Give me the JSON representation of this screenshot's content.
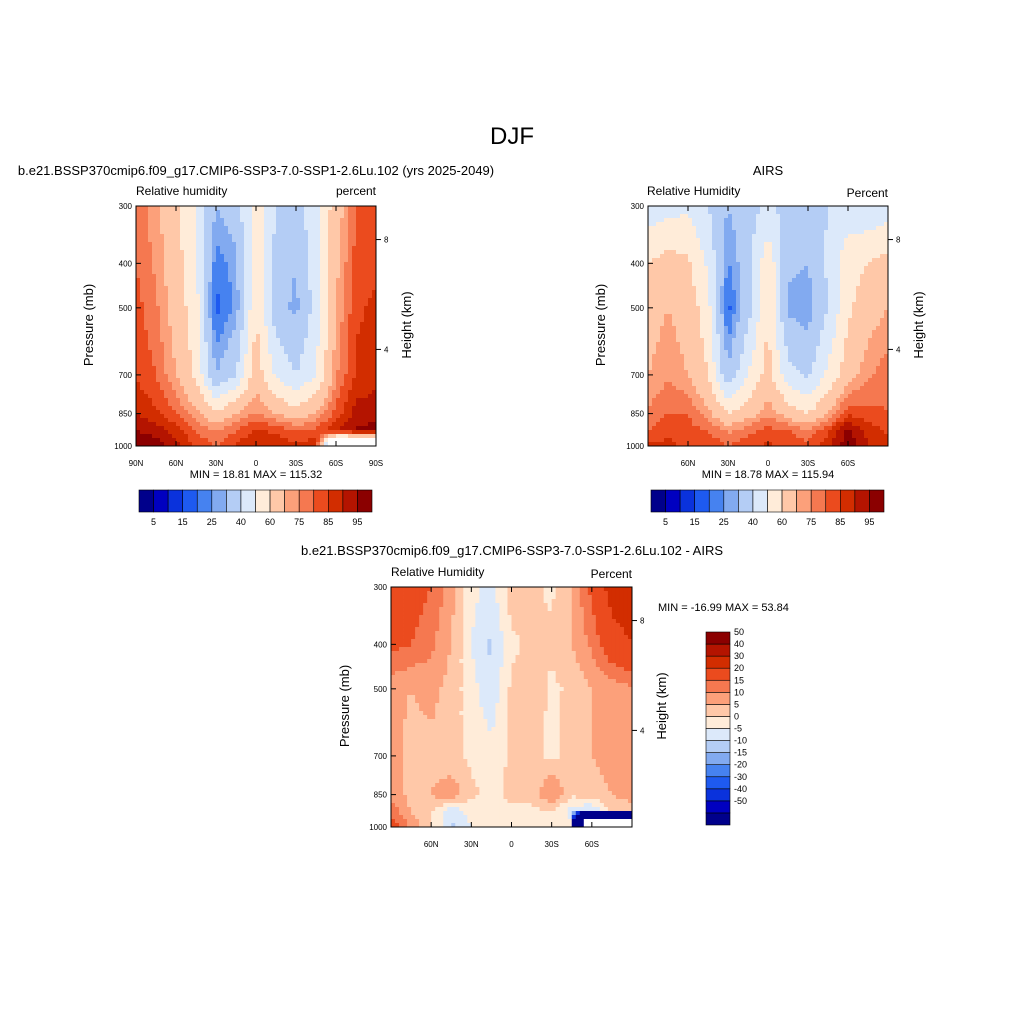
{
  "figure": {
    "title": "DJF"
  },
  "colors": {
    "abs_levels": [
      "#00008b",
      "#0000c0",
      "#0a32dc",
      "#1e5af0",
      "#4682f0",
      "#82aaf0",
      "#b4cdf5",
      "#dce9fa",
      "#ffecd9",
      "#ffc8a8",
      "#fca07a",
      "#f57850",
      "#eb4b1e",
      "#d22d00",
      "#b41400",
      "#8b0000"
    ],
    "diff_levels": [
      "#00008b",
      "#0000c0",
      "#0a32dc",
      "#1e5af0",
      "#4682f0",
      "#82aaf0",
      "#b4cdf5",
      "#dce9fa",
      "#ffecd9",
      "#ffc8a8",
      "#fca07a",
      "#f57850",
      "#eb4b1e",
      "#d22d00",
      "#b41400",
      "#8b0000"
    ],
    "missing": "#ffffff"
  },
  "chart_data": [
    {
      "type": "heatmap",
      "title": "b.e21.BSSP370cmip6.f09_g17.CMIP6-SSP3-7.0-SSP1-2.6Lu.102 (yrs 2025-2049)",
      "left_label": "Relative humidity",
      "right_label": "percent",
      "ylabel": "Pressure (mb)",
      "ylabel_right": "Height (km)",
      "yticks": [
        "300",
        "400",
        "500",
        "700",
        "850",
        "1000"
      ],
      "ytick_values": [
        300,
        400,
        500,
        700,
        850,
        1000
      ],
      "yticks_right": [
        "8",
        "4"
      ],
      "xticks": [
        "90N",
        "60N",
        "30N",
        "0",
        "30S",
        "60S",
        "90S"
      ],
      "xtick_values": [
        90,
        60,
        30,
        0,
        -30,
        -60,
        -90
      ],
      "xlim": [
        90,
        -90
      ],
      "ylim": [
        300,
        1000
      ],
      "stats": "MIN =  18.81  MAX = 115.32",
      "colorbar_labels": [
        "5",
        "15",
        "25",
        "40",
        "60",
        "75",
        "85",
        "95"
      ],
      "levels": [
        5,
        10,
        15,
        20,
        25,
        30,
        40,
        50,
        60,
        70,
        75,
        80,
        85,
        90,
        95
      ],
      "x": [
        90,
        75,
        60,
        45,
        30,
        15,
        0,
        -15,
        -30,
        -45,
        -60,
        -75,
        -90
      ],
      "pressure": [
        300,
        400,
        500,
        700,
        850,
        925,
        1000
      ],
      "values": [
        [
          78,
          72,
          62,
          50,
          30,
          35,
          55,
          40,
          35,
          48,
          65,
          80,
          82
        ],
        [
          80,
          74,
          64,
          52,
          22,
          28,
          58,
          36,
          30,
          46,
          68,
          82,
          84
        ],
        [
          82,
          76,
          66,
          54,
          18,
          26,
          60,
          34,
          28,
          44,
          70,
          84,
          86
        ],
        [
          84,
          80,
          70,
          58,
          30,
          40,
          66,
          48,
          40,
          50,
          74,
          86,
          88
        ],
        [
          90,
          86,
          80,
          72,
          62,
          70,
          76,
          70,
          64,
          70,
          82,
          92,
          93
        ],
        [
          95,
          93,
          88,
          80,
          74,
          80,
          86,
          84,
          80,
          82,
          90,
          96,
          97
        ],
        [
          100,
          98,
          92,
          84,
          80,
          86,
          90,
          88,
          86,
          88,
          -1,
          -1,
          -1
        ]
      ]
    },
    {
      "type": "heatmap",
      "title": "AIRS",
      "left_label": "Relative Humidity",
      "right_label": "Percent",
      "ylabel": "Pressure (mb)",
      "ylabel_right": "Height (km)",
      "yticks": [
        "300",
        "400",
        "500",
        "700",
        "850",
        "1000"
      ],
      "ytick_values": [
        300,
        400,
        500,
        700,
        850,
        1000
      ],
      "yticks_right": [
        "8",
        "4"
      ],
      "xticks": [
        "60N",
        "30N",
        "0",
        "30S",
        "60S"
      ],
      "xtick_values": [
        60,
        30,
        0,
        -30,
        -60
      ],
      "xlim": [
        90,
        -90
      ],
      "ylim": [
        300,
        1000
      ],
      "stats": "MIN =  18.78  MAX = 115.94",
      "colorbar_labels": [
        "5",
        "15",
        "25",
        "40",
        "60",
        "75",
        "85",
        "95"
      ],
      "levels": [
        5,
        10,
        15,
        20,
        25,
        30,
        40,
        50,
        60,
        70,
        75,
        80,
        85,
        90,
        95
      ],
      "x": [
        90,
        75,
        60,
        45,
        30,
        15,
        0,
        -15,
        -30,
        -45,
        -60,
        -75,
        -90
      ],
      "pressure": [
        300,
        400,
        500,
        700,
        850,
        925,
        1000
      ],
      "values": [
        [
          44,
          46,
          48,
          40,
          30,
          36,
          42,
          36,
          34,
          40,
          44,
          42,
          44
        ],
        [
          60,
          64,
          62,
          48,
          24,
          36,
          58,
          32,
          30,
          42,
          56,
          60,
          64
        ],
        [
          66,
          70,
          66,
          54,
          18,
          36,
          60,
          28,
          26,
          40,
          58,
          66,
          70
        ],
        [
          70,
          74,
          70,
          60,
          32,
          50,
          64,
          44,
          38,
          52,
          66,
          74,
          78
        ],
        [
          76,
          80,
          80,
          72,
          60,
          66,
          74,
          66,
          60,
          70,
          84,
          82,
          80
        ],
        [
          80,
          84,
          82,
          80,
          74,
          78,
          82,
          80,
          76,
          84,
          96,
          88,
          84
        ],
        [
          86,
          86,
          84,
          84,
          80,
          84,
          86,
          84,
          82,
          88,
          100,
          90,
          86
        ]
      ]
    },
    {
      "type": "heatmap",
      "title": "b.e21.BSSP370cmip6.f09_g17.CMIP6-SSP3-7.0-SSP1-2.6Lu.102 - AIRS",
      "left_label": "Relative Humidity",
      "right_label": "Percent",
      "ylabel": "Pressure (mb)",
      "ylabel_right": "Height (km)",
      "yticks": [
        "300",
        "400",
        "500",
        "700",
        "850",
        "1000"
      ],
      "ytick_values": [
        300,
        400,
        500,
        700,
        850,
        1000
      ],
      "yticks_right": [
        "8",
        "4"
      ],
      "xticks": [
        "60N",
        "30N",
        "0",
        "30S",
        "60S"
      ],
      "xtick_values": [
        60,
        30,
        0,
        -30,
        -60
      ],
      "xlim": [
        90,
        -90
      ],
      "ylim": [
        300,
        1000
      ],
      "stats": "MIN = -16.99  MAX =  53.84",
      "colorbar_labels": [
        "50",
        "40",
        "30",
        "20",
        "15",
        "10",
        "5",
        "0",
        "-5",
        "-10",
        "-15",
        "-20",
        "-30",
        "-40",
        "-50"
      ],
      "levels": [
        -50,
        -40,
        -30,
        -20,
        -15,
        -10,
        -5,
        0,
        5,
        10,
        15,
        20,
        30,
        40,
        50
      ],
      "x": [
        90,
        75,
        60,
        45,
        30,
        15,
        0,
        -15,
        -30,
        -45,
        -60,
        -75,
        -90
      ],
      "pressure": [
        300,
        400,
        500,
        700,
        850,
        925,
        1000
      ],
      "values": [
        [
          28,
          24,
          20,
          12,
          2,
          -2,
          8,
          6,
          4,
          10,
          22,
          34,
          36
        ],
        [
          22,
          20,
          16,
          10,
          0,
          -6,
          4,
          6,
          6,
          10,
          16,
          26,
          30
        ],
        [
          12,
          10,
          12,
          8,
          2,
          -4,
          6,
          8,
          4,
          6,
          10,
          12,
          14
        ],
        [
          12,
          8,
          8,
          6,
          4,
          2,
          6,
          6,
          4,
          6,
          10,
          12,
          12
        ],
        [
          14,
          8,
          10,
          14,
          6,
          4,
          6,
          6,
          16,
          6,
          8,
          10,
          12
        ],
        [
          18,
          10,
          6,
          -4,
          2,
          2,
          4,
          4,
          4,
          -2,
          -6,
          6,
          8
        ],
        [
          26,
          14,
          6,
          -6,
          0,
          2,
          4,
          2,
          4,
          2,
          -1000,
          -1000,
          -1000
        ]
      ]
    }
  ]
}
